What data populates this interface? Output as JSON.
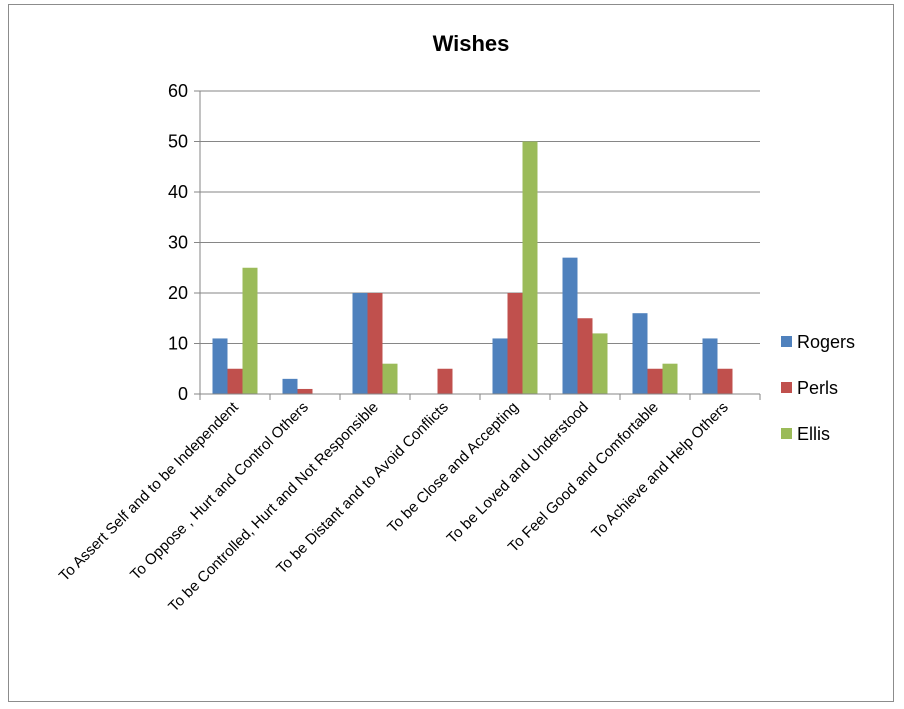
{
  "chart_data": {
    "type": "bar",
    "title": "Wishes",
    "categories": [
      "To Assert Self and to be Independent",
      "To Oppose , Hurt and Control Others",
      "To be Controlled, Hurt and Not Responsible",
      "To be Distant and to Avoid Conflicts",
      "To be Close and Accepting",
      "To be Loved and Understood",
      "To Feel Good and Comfortable",
      "To Achieve and Help Others"
    ],
    "series": [
      {
        "name": "Rogers",
        "color": "#4f81bd",
        "values": [
          11,
          3,
          20,
          0,
          11,
          27,
          16,
          11
        ]
      },
      {
        "name": "Perls",
        "color": "#c0504d",
        "values": [
          5,
          1,
          20,
          5,
          20,
          15,
          5,
          5
        ]
      },
      {
        "name": "Ellis",
        "color": "#9bbb59",
        "values": [
          25,
          0,
          6,
          0,
          50,
          12,
          6,
          0
        ]
      }
    ],
    "ylim": [
      0,
      60
    ],
    "yticks": [
      0,
      10,
      20,
      30,
      40,
      50,
      60
    ],
    "grid": true,
    "legend": "right"
  }
}
